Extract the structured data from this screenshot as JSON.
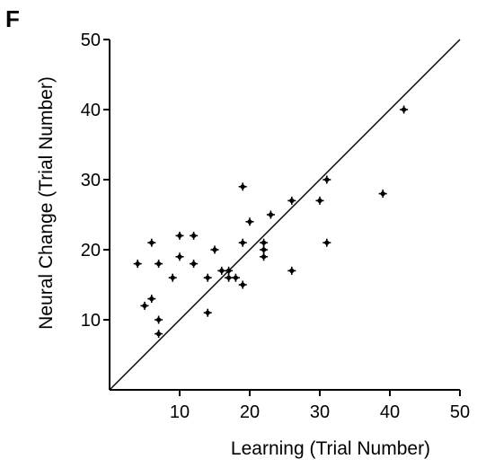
{
  "panel_label": "F",
  "chart_data": {
    "type": "scatter",
    "xlabel": "Learning (Trial Number)",
    "ylabel": "Neural Change (Trial Number)",
    "xlim": [
      0,
      50
    ],
    "ylim": [
      0,
      50
    ],
    "x_ticks": [
      10,
      20,
      30,
      40,
      50
    ],
    "y_ticks": [
      10,
      20,
      30,
      40,
      50
    ],
    "grid": false,
    "reference_line": "identity",
    "points": [
      {
        "x": 4,
        "y": 18
      },
      {
        "x": 5,
        "y": 12
      },
      {
        "x": 6,
        "y": 13
      },
      {
        "x": 6,
        "y": 21
      },
      {
        "x": 7,
        "y": 18
      },
      {
        "x": 7,
        "y": 10
      },
      {
        "x": 7,
        "y": 8
      },
      {
        "x": 9,
        "y": 16
      },
      {
        "x": 10,
        "y": 19
      },
      {
        "x": 10,
        "y": 22
      },
      {
        "x": 12,
        "y": 22
      },
      {
        "x": 12,
        "y": 18
      },
      {
        "x": 14,
        "y": 16
      },
      {
        "x": 14,
        "y": 11
      },
      {
        "x": 15,
        "y": 20
      },
      {
        "x": 16,
        "y": 17
      },
      {
        "x": 17,
        "y": 17
      },
      {
        "x": 17,
        "y": 16
      },
      {
        "x": 18,
        "y": 16
      },
      {
        "x": 19,
        "y": 15
      },
      {
        "x": 19,
        "y": 21
      },
      {
        "x": 19,
        "y": 29
      },
      {
        "x": 20,
        "y": 24
      },
      {
        "x": 22,
        "y": 21
      },
      {
        "x": 22,
        "y": 20
      },
      {
        "x": 22,
        "y": 19
      },
      {
        "x": 23,
        "y": 25
      },
      {
        "x": 26,
        "y": 27
      },
      {
        "x": 26,
        "y": 17
      },
      {
        "x": 30,
        "y": 27
      },
      {
        "x": 31,
        "y": 30
      },
      {
        "x": 31,
        "y": 21
      },
      {
        "x": 39,
        "y": 28
      },
      {
        "x": 42,
        "y": 40
      }
    ]
  }
}
